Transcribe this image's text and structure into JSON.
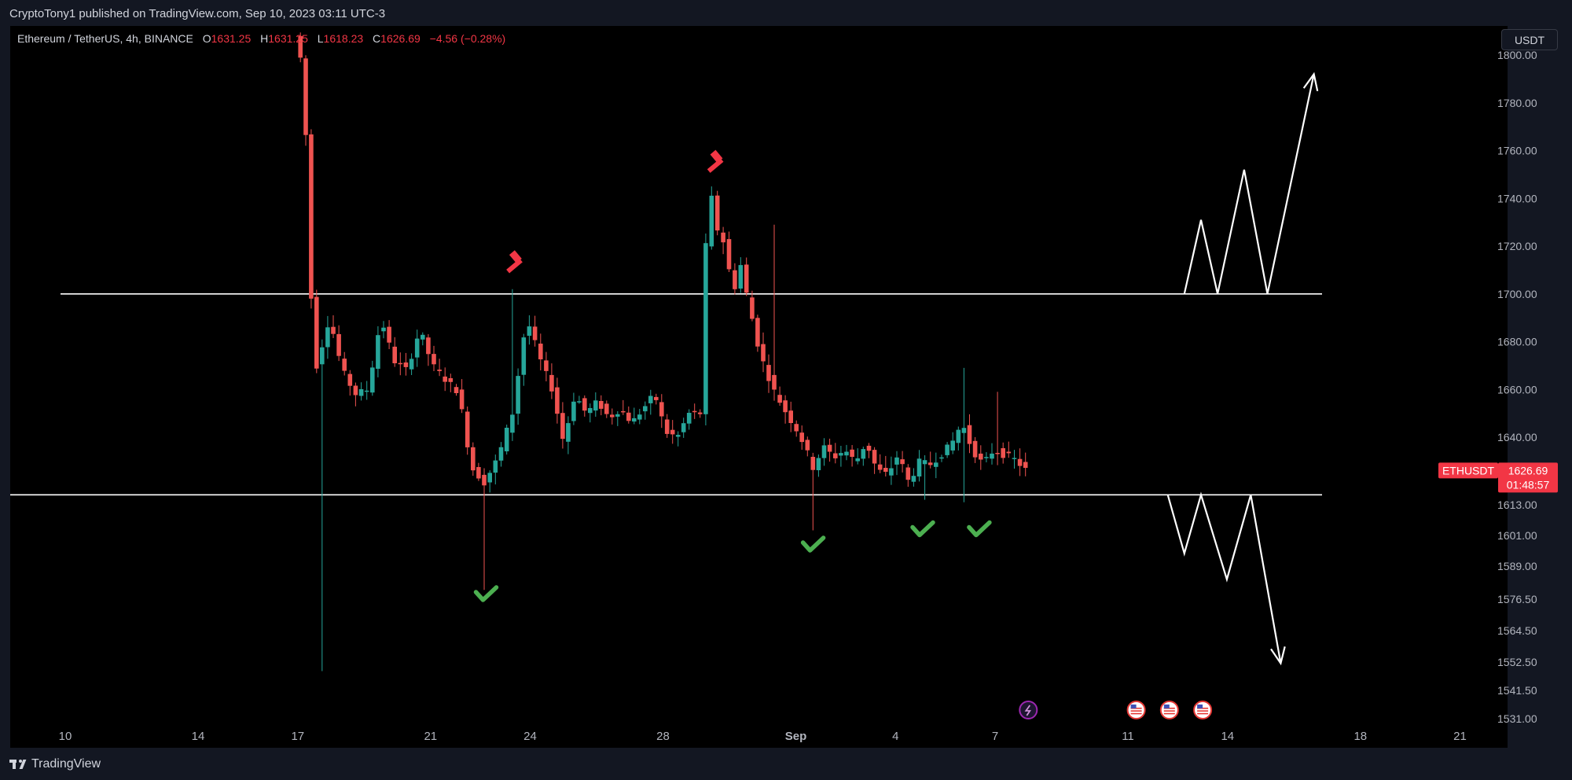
{
  "header": {
    "published_text": "CryptoTony1 published on TradingView.com, Sep 10, 2023 03:11 UTC-3"
  },
  "legend": {
    "symbol": "Ethereum / TetherUS, 4h, BINANCE",
    "open_label": "O",
    "open": "1631.25",
    "high_label": "H",
    "high": "1631.25",
    "low_label": "L",
    "low": "1618.23",
    "close_label": "C",
    "close": "1626.69",
    "change": "−4.56 (−0.28%)"
  },
  "currency_button": "USDT",
  "footer": {
    "brand": "TradingView"
  },
  "price_tag": {
    "symbol": "ETHUSDT",
    "price": "1626.69",
    "countdown": "01:48:57"
  },
  "colors": {
    "up": "#26a69a",
    "down": "#ef5350",
    "background": "#000000",
    "frame": "#131722",
    "levels": "#ffffff",
    "check": "#4caf50",
    "hammer": "#f23645"
  },
  "chart_data": {
    "type": "candlestick",
    "timeframe": "4h",
    "y_axis_labels": [
      "1800.00",
      "1780.00",
      "1760.00",
      "1740.00",
      "1720.00",
      "1700.00",
      "1680.00",
      "1660.00",
      "1640.00",
      "1626.69",
      "1613.00",
      "1601.00",
      "1589.00",
      "1576.50",
      "1564.50",
      "1552.50",
      "1541.50",
      "1531.00"
    ],
    "x_axis_labels": [
      "10",
      "14",
      "17",
      "21",
      "24",
      "28",
      "Sep",
      "4",
      "7",
      "11",
      "14",
      "18",
      "21"
    ],
    "horizontal_levels": [
      1700.0,
      1617.0
    ],
    "series": [
      {
        "name": "ETHUSDT",
        "segments": [
          {
            "from_day": 17.0,
            "to_day": 17.65,
            "path": [
              1808,
              1800,
              1795,
              1738,
              1685,
              1670
            ]
          },
          {
            "from_day": 17.65,
            "to_day": 22.7,
            "path": [
              1670,
              1690,
              1668,
              1658,
              1660,
              1690,
              1672,
              1668,
              1685,
              1670,
              1664,
              1659,
              1628,
              1622
            ]
          },
          {
            "from_day": 22.7,
            "to_day": 24.4,
            "path": [
              1622,
              1632,
              1650,
              1690,
              1672
            ]
          },
          {
            "from_day": 24.4,
            "to_day": 29.2,
            "path": [
              1672,
              1660,
              1638,
              1658,
              1650,
              1655,
              1648,
              1652,
              1646,
              1652,
              1658,
              1642,
              1640,
              1650,
              1650
            ]
          },
          {
            "from_day": 29.2,
            "to_day": 30.6,
            "path": [
              1650,
              1720,
              1740,
              1727,
              1722,
              1710,
              1703,
              1712,
              1700
            ]
          },
          {
            "from_day": 30.6,
            "to_day": 32.6,
            "path": [
              1700,
              1675,
              1660,
              1650,
              1641,
              1628
            ]
          },
          {
            "from_day": 32.6,
            "to_day": 39.0,
            "path": [
              1628,
              1636,
              1632,
              1635,
              1630,
              1638,
              1627,
              1625,
              1633,
              1622,
              1630,
              1629,
              1633,
              1637,
              1646,
              1635,
              1629,
              1635,
              1633,
              1631,
              1627
            ]
          }
        ]
      }
    ],
    "candle_overrides": [
      {
        "day": 17.7,
        "low": 1549
      },
      {
        "day": 22.67,
        "low": 1580
      },
      {
        "day": 23.5,
        "high": 1702
      },
      {
        "day": 29.5,
        "high": 1745
      },
      {
        "day": 31.3,
        "high": 1729
      },
      {
        "day": 32.6,
        "low": 1603
      },
      {
        "day": 35.9,
        "low": 1615
      },
      {
        "day": 37.0,
        "high": 1669,
        "low": 1614
      },
      {
        "day": 38.1,
        "high": 1659
      }
    ],
    "annotations": [
      {
        "type": "check",
        "day": 22.65,
        "price": 1578
      },
      {
        "type": "check",
        "day": 32.5,
        "price": 1597
      },
      {
        "type": "check",
        "day": 35.8,
        "price": 1603
      },
      {
        "type": "check",
        "day": 37.5,
        "price": 1603
      },
      {
        "type": "hammer",
        "day": 23.45,
        "price": 1713
      },
      {
        "type": "hammer",
        "day": 29.5,
        "price": 1755
      }
    ],
    "projection_up": [
      [
        43.7,
        1700
      ],
      [
        44.2,
        1731
      ],
      [
        44.7,
        1700
      ],
      [
        45.5,
        1752
      ],
      [
        46.2,
        1700
      ],
      [
        47.6,
        1792
      ]
    ],
    "projection_down": [
      [
        43.2,
        1617
      ],
      [
        43.7,
        1594
      ],
      [
        44.2,
        1617
      ],
      [
        44.98,
        1584
      ],
      [
        45.7,
        1617
      ],
      [
        46.6,
        1552
      ]
    ],
    "event_markers": [
      {
        "type": "lightning-event",
        "day": 39.0
      },
      {
        "type": "us-flag-event",
        "day": 42.25
      },
      {
        "type": "us-flag-event",
        "day": 43.25
      },
      {
        "type": "us-flag-event",
        "day": 44.25
      }
    ]
  }
}
